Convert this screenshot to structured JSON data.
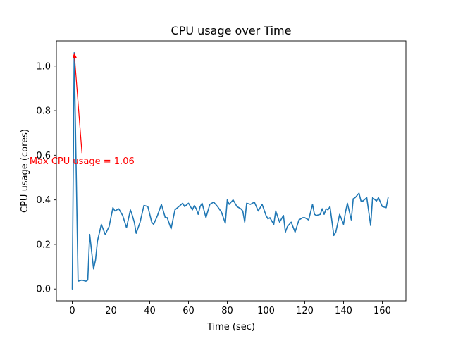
{
  "chart_data": {
    "type": "line",
    "title": "CPU usage over Time",
    "xlabel": "Time (sec)",
    "ylabel": "CPU usage (cores)",
    "xlim": [
      -8.2,
      172.2
    ],
    "ylim": [
      -0.053,
      1.113
    ],
    "xticks": [
      0,
      20,
      40,
      60,
      80,
      100,
      120,
      140,
      160
    ],
    "xtick_labels": [
      "0",
      "20",
      "40",
      "60",
      "80",
      "100",
      "120",
      "140",
      "160"
    ],
    "yticks": [
      0.0,
      0.2,
      0.4,
      0.6,
      0.8,
      1.0
    ],
    "ytick_labels": [
      "0.0",
      "0.2",
      "0.4",
      "0.6",
      "0.8",
      "1.0"
    ],
    "grid": false,
    "series": [
      {
        "name": "CPU usage",
        "color": "#1f77b4",
        "x": [
          0,
          1,
          3,
          5,
          7,
          8,
          9,
          11,
          12,
          13,
          15,
          17,
          19,
          21,
          22,
          24,
          26,
          28,
          30,
          31,
          32,
          33,
          35,
          37,
          39,
          41,
          42,
          44,
          46,
          48,
          49,
          51,
          53,
          55,
          57,
          58,
          60,
          62,
          63,
          64,
          65,
          66,
          67,
          69,
          71,
          73,
          75,
          77,
          79,
          80,
          81,
          83,
          85,
          87,
          88,
          89,
          90,
          92,
          94,
          96,
          98,
          100,
          101,
          102,
          104,
          105,
          107,
          109,
          110,
          111,
          113,
          115,
          117,
          119,
          120,
          121,
          122,
          124,
          125,
          126,
          128,
          129,
          130,
          131,
          132,
          133,
          135,
          136,
          138,
          140,
          141,
          142,
          144,
          145,
          146,
          148,
          149,
          150,
          152,
          154,
          155,
          157,
          158,
          160,
          162,
          163
        ],
        "y": [
          0.0,
          1.06,
          0.035,
          0.04,
          0.035,
          0.04,
          0.245,
          0.09,
          0.13,
          0.215,
          0.29,
          0.245,
          0.28,
          0.365,
          0.35,
          0.36,
          0.33,
          0.275,
          0.355,
          0.33,
          0.3,
          0.25,
          0.3,
          0.375,
          0.37,
          0.3,
          0.29,
          0.33,
          0.38,
          0.32,
          0.32,
          0.27,
          0.355,
          0.37,
          0.385,
          0.37,
          0.385,
          0.355,
          0.375,
          0.36,
          0.335,
          0.37,
          0.385,
          0.32,
          0.38,
          0.39,
          0.37,
          0.345,
          0.295,
          0.4,
          0.38,
          0.4,
          0.37,
          0.36,
          0.35,
          0.3,
          0.385,
          0.38,
          0.39,
          0.35,
          0.38,
          0.33,
          0.315,
          0.32,
          0.29,
          0.35,
          0.3,
          0.33,
          0.255,
          0.28,
          0.3,
          0.255,
          0.31,
          0.32,
          0.32,
          0.315,
          0.31,
          0.38,
          0.335,
          0.33,
          0.335,
          0.36,
          0.335,
          0.36,
          0.355,
          0.37,
          0.24,
          0.255,
          0.335,
          0.29,
          0.345,
          0.385,
          0.31,
          0.405,
          0.41,
          0.43,
          0.395,
          0.395,
          0.41,
          0.285,
          0.41,
          0.395,
          0.41,
          0.37,
          0.365,
          0.41
        ]
      }
    ],
    "annotation": {
      "text": "Max CPU usage = 1.06",
      "color": "#ff0000",
      "point": [
        1,
        1.06
      ],
      "text_at": [
        5,
        0.61
      ]
    }
  }
}
